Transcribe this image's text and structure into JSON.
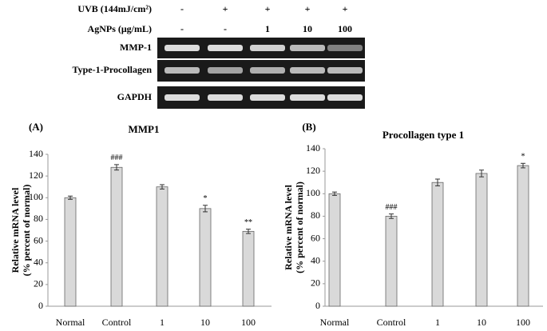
{
  "gel": {
    "rows": [
      {
        "label": "UVB (144mJ/cm²)",
        "lanes": [
          "-",
          "+",
          "+",
          "+",
          "+"
        ]
      },
      {
        "label": "AgNPs (μg/mL)",
        "lanes": [
          "-",
          "-",
          "1",
          "10",
          "100"
        ]
      }
    ],
    "bands": [
      "MMP-1",
      "Type-1-Procollagen",
      "GAPDH"
    ]
  },
  "chart_data": [
    {
      "type": "bar",
      "panel": "(A)",
      "title": "MMP1",
      "ylabel": [
        "Relative mRNA level",
        "(% percent of normal)"
      ],
      "categories": [
        "Normal",
        "Control",
        "1",
        "10",
        "100"
      ],
      "values": [
        100,
        128,
        110,
        90,
        69
      ],
      "errors": [
        1.5,
        2.5,
        2,
        3,
        2
      ],
      "annotations": [
        null,
        "###",
        null,
        "*",
        "**"
      ],
      "color": "#d9d9d9",
      "ylim": [
        0,
        140
      ],
      "yticks": [
        0,
        20,
        40,
        60,
        80,
        100,
        120,
        140
      ],
      "grid": false
    },
    {
      "type": "bar",
      "panel": "(B)",
      "title": "Procollagen type 1",
      "ylabel": [
        "Relative mRNA level",
        "(% percent of normal)"
      ],
      "categories": [
        "Normal",
        "Control",
        "1",
        "10",
        "100"
      ],
      "values": [
        100,
        80,
        110,
        118,
        125
      ],
      "errors": [
        1.5,
        2,
        3,
        3,
        2
      ],
      "annotations": [
        null,
        "###",
        null,
        null,
        "*"
      ],
      "color": "#d9d9d9",
      "ylim": [
        0,
        140
      ],
      "yticks": [
        0,
        20,
        40,
        60,
        80,
        100,
        120,
        140
      ],
      "grid": false
    }
  ]
}
